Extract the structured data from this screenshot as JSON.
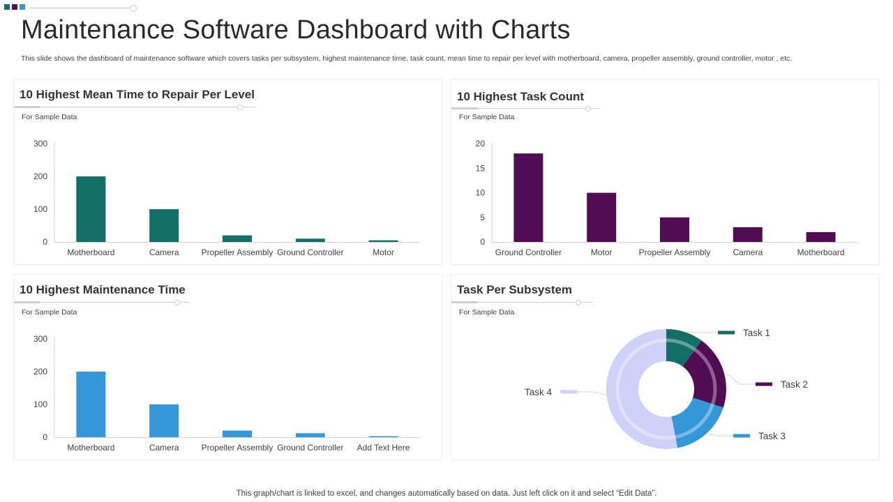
{
  "page": {
    "title": "Maintenance Software Dashboard with Charts",
    "subtitle": "This slide shows the dashboard of maintenance software which covers tasks per subsystem, highest maintenance time, task count, mean time to repair per level with motherboard, camera, propeller assembly, ground controller, motor , etc.",
    "footer": "This graph/chart is linked to excel,  and changes automatically based on data. Just left click on it and select “Edit Data”."
  },
  "colors": {
    "teal": "#136e67",
    "purple": "#510d53",
    "blue": "#3497d8",
    "lavender": "#cfd1f8",
    "axis": "#cfcfcf",
    "deco": [
      "#136e67",
      "#510d53",
      "#3497d8"
    ]
  },
  "panels": {
    "mttr": {
      "title": "10 Highest Mean Time to Repair Per Level",
      "note": "For Sample Data"
    },
    "task_count": {
      "title": "10 Highest Task Count",
      "note": "For Sample Data"
    },
    "maint_time": {
      "title": "10 Highest Maintenance Time",
      "note": "For Sample Data"
    },
    "subsystem": {
      "title": "Task Per Subsystem",
      "note": "For Sample Data"
    }
  },
  "chart_data": [
    {
      "id": "mttr",
      "type": "bar",
      "title": "10 Highest Mean Time to Repair Per Level",
      "categories": [
        "Motherboard",
        "Camera",
        "Propeller Assembly",
        "Ground Controller",
        "Motor"
      ],
      "values": [
        200,
        100,
        20,
        10,
        5
      ],
      "yticks": [
        0,
        100,
        200,
        300
      ],
      "ylim": [
        0,
        300
      ],
      "color": "#136e67"
    },
    {
      "id": "task_count",
      "type": "bar",
      "title": "10 Highest Task Count",
      "categories": [
        "Ground Controller",
        "Motor",
        "Propeller Assembly",
        "Camera",
        "Motherboard"
      ],
      "values": [
        18,
        10,
        5,
        3,
        2
      ],
      "yticks": [
        0,
        5,
        10,
        15,
        20
      ],
      "ylim": [
        0,
        20
      ],
      "color": "#510d53"
    },
    {
      "id": "maint_time",
      "type": "bar",
      "title": "10 Highest Maintenance Time",
      "categories": [
        "Motherboard",
        "Camera",
        "Propeller Assembly",
        "Ground Controller",
        "Add Text Here"
      ],
      "values": [
        200,
        100,
        20,
        12,
        3
      ],
      "yticks": [
        0,
        100,
        200,
        300
      ],
      "ylim": [
        0,
        300
      ],
      "color": "#3497d8"
    },
    {
      "id": "subsystem",
      "type": "pie",
      "title": "Task Per Subsystem",
      "labels": [
        "Task 1",
        "Task 2",
        "Task 3",
        "Task 4"
      ],
      "values": [
        10,
        20,
        17,
        53
      ],
      "colors": [
        "#136e67",
        "#510d53",
        "#3497d8",
        "#cfd1f8"
      ]
    }
  ]
}
